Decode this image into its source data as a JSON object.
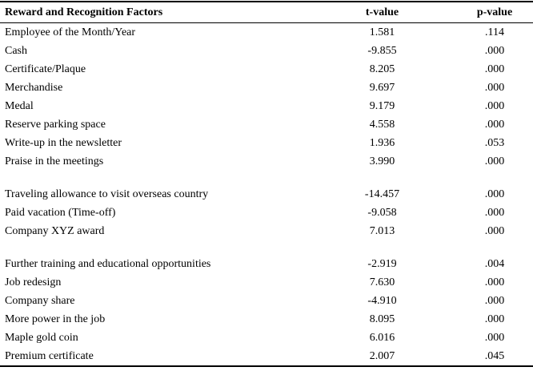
{
  "table": {
    "header": {
      "factor": "Reward and Recognition Factors",
      "t": "t-value",
      "p": "p-value"
    },
    "sections": [
      {
        "rows": [
          {
            "factor": "Employee of the Month/Year",
            "t": "1.581",
            "p": ".114"
          },
          {
            "factor": "Cash",
            "t": "-9.855",
            "p": ".000"
          },
          {
            "factor": "Certificate/Plaque",
            "t": "8.205",
            "p": ".000"
          },
          {
            "factor": "Merchandise",
            "t": "9.697",
            "p": ".000"
          },
          {
            "factor": "Medal",
            "t": "9.179",
            "p": ".000"
          },
          {
            "factor": "Reserve parking space",
            "t": "4.558",
            "p": ".000"
          },
          {
            "factor": "Write-up in the newsletter",
            "t": "1.936",
            "p": ".053"
          },
          {
            "factor": "Praise in the meetings",
            "t": "3.990",
            "p": ".000"
          }
        ]
      },
      {
        "rows": [
          {
            "factor": "Traveling allowance to visit overseas country",
            "t": "-14.457",
            "p": ".000"
          },
          {
            "factor": "Paid vacation (Time-off)",
            "t": "-9.058",
            "p": ".000"
          },
          {
            "factor": "Company XYZ award",
            "t": "7.013",
            "p": ".000"
          }
        ]
      },
      {
        "rows": [
          {
            "factor": "Further training and educational opportunities",
            "t": "-2.919",
            "p": ".004"
          },
          {
            "factor": "Job redesign",
            "t": "7.630",
            "p": ".000"
          },
          {
            "factor": "Company share",
            "t": "-4.910",
            "p": ".000"
          },
          {
            "factor": "More power in the job",
            "t": "8.095",
            "p": ".000"
          },
          {
            "factor": "Maple gold coin",
            "t": "6.016",
            "p": ".000"
          },
          {
            "factor": "Premium certificate",
            "t": "2.007",
            "p": ".045"
          }
        ]
      }
    ]
  }
}
